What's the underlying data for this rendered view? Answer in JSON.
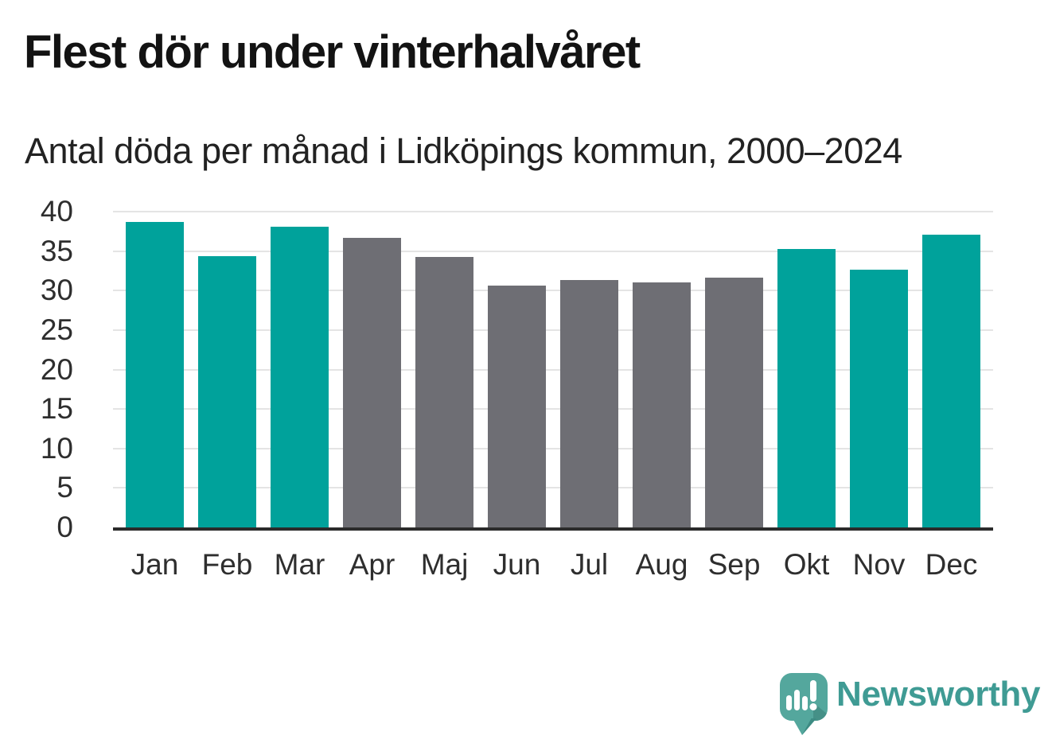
{
  "header": {
    "title": "Flest dör under vinterhalvåret",
    "subtitle": "Antal döda per månad i Lidköpings kommun, 2000–2024"
  },
  "chart_data": {
    "type": "bar",
    "title": "Flest dör under vinterhalvåret",
    "subtitle": "Antal döda per månad i Lidköpings kommun, 2000–2024",
    "categories": [
      "Jan",
      "Feb",
      "Mar",
      "Apr",
      "Maj",
      "Jun",
      "Jul",
      "Aug",
      "Sep",
      "Okt",
      "Nov",
      "Dec"
    ],
    "values": [
      38.7,
      34.4,
      38.1,
      36.7,
      34.3,
      30.6,
      31.3,
      31.0,
      31.6,
      35.3,
      32.6,
      37.1
    ],
    "bar_color_keys": [
      "winter",
      "winter",
      "winter",
      "summer",
      "summer",
      "summer",
      "summer",
      "summer",
      "summer",
      "winter",
      "winter",
      "winter"
    ],
    "colors": {
      "winter": "#00A29B",
      "summer": "#6E6E74"
    },
    "xlabel": "",
    "ylabel": "",
    "ylim": [
      0,
      40
    ],
    "yticks": [
      0,
      5,
      10,
      15,
      20,
      25,
      30,
      35,
      40
    ],
    "grid": "horizontal",
    "gridline_color": "#E4E4E4",
    "axis_color": "#2B2B2B",
    "legend": "none"
  },
  "footer": {
    "brand": "Newsworthy",
    "brand_color": "#3F9B94",
    "logo_icon": "speech-bubble-with-bar-chart-and-exclamation",
    "logo_color": "#54A79D"
  }
}
